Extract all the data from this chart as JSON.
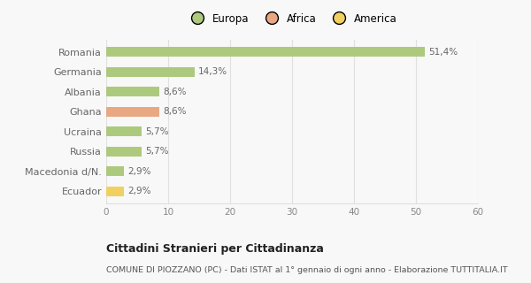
{
  "categories": [
    "Romania",
    "Germania",
    "Albania",
    "Ghana",
    "Ucraina",
    "Russia",
    "Macedonia d/N.",
    "Ecuador"
  ],
  "values": [
    51.4,
    14.3,
    8.6,
    8.6,
    5.7,
    5.7,
    2.9,
    2.9
  ],
  "labels": [
    "51,4%",
    "14,3%",
    "8,6%",
    "8,6%",
    "5,7%",
    "5,7%",
    "2,9%",
    "2,9%"
  ],
  "colors": [
    "#adc97e",
    "#adc97e",
    "#adc97e",
    "#e8a882",
    "#adc97e",
    "#adc97e",
    "#adc97e",
    "#f0d060"
  ],
  "legend": [
    {
      "label": "Europa",
      "color": "#adc97e"
    },
    {
      "label": "Africa",
      "color": "#e8a882"
    },
    {
      "label": "America",
      "color": "#f0d060"
    }
  ],
  "xlim": [
    0,
    60
  ],
  "xticks": [
    0,
    10,
    20,
    30,
    40,
    50,
    60
  ],
  "title": "Cittadini Stranieri per Cittadinanza",
  "subtitle": "COMUNE DI PIOZZANO (PC) - Dati ISTAT al 1° gennaio di ogni anno - Elaborazione TUTTITALIA.IT",
  "bg_color": "#f8f8f8",
  "grid_color": "#e0e0e0",
  "bar_height": 0.5,
  "label_color": "#666666",
  "tick_color": "#888888"
}
